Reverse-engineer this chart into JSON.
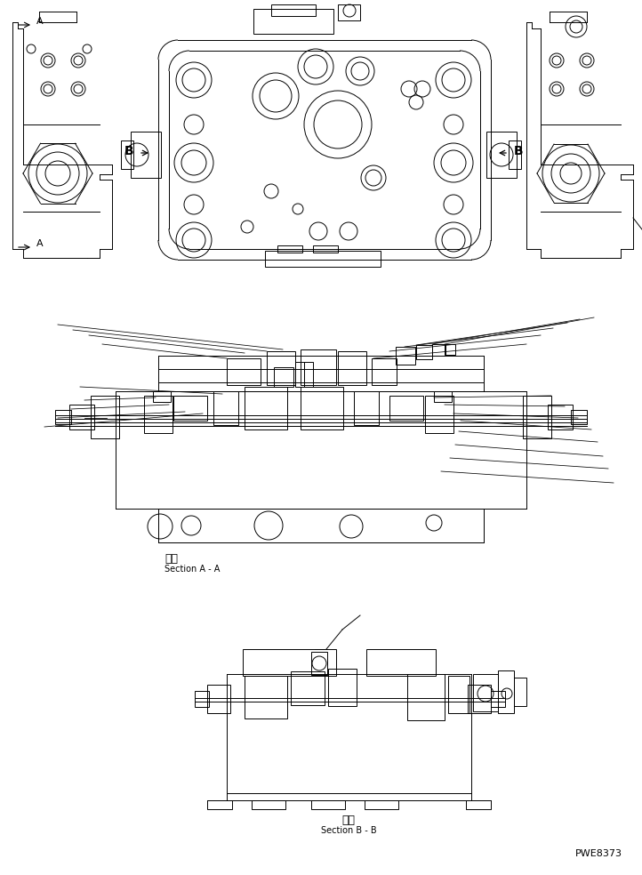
{
  "bg_color": "#ffffff",
  "line_color": "#000000",
  "text_color": "#000000",
  "fig_width": 7.22,
  "fig_height": 9.84,
  "dpi": 100,
  "section_aa_label_jp": "断面",
  "section_aa_label_en": "Section A - A",
  "section_bb_label_jp": "断面",
  "section_bb_label_en": "Section B - B",
  "code": "PWE8373",
  "label_A": "A",
  "label_B": "B"
}
